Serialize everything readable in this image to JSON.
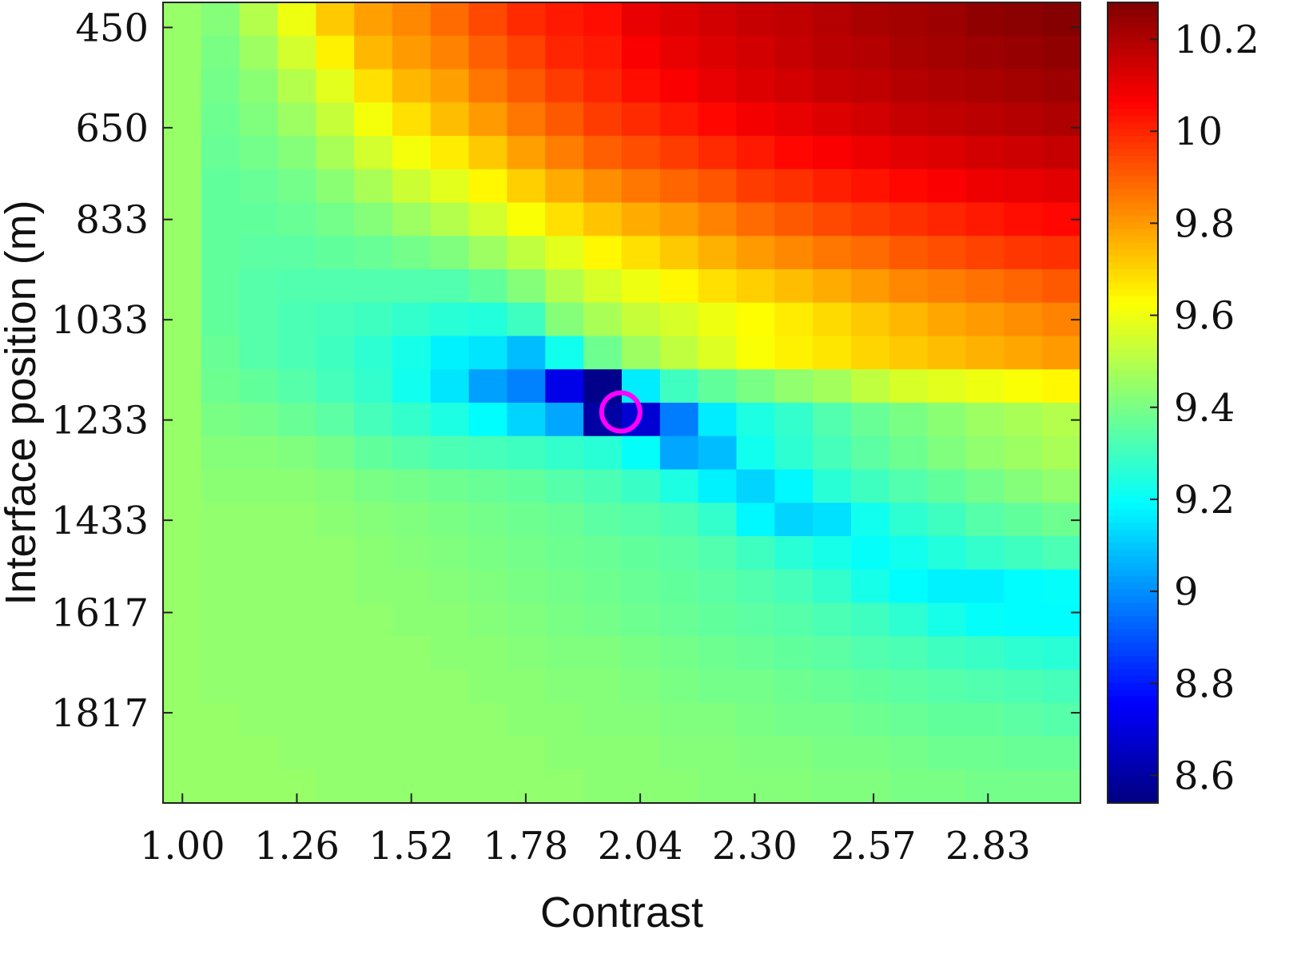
{
  "chart_data": {
    "type": "heatmap",
    "title": "",
    "xlabel": "Contrast",
    "ylabel": "Interface position (m)",
    "x_tick_labels": [
      "1.00",
      "1.26",
      "1.52",
      "1.78",
      "2.04",
      "2.30",
      "2.57",
      "2.83"
    ],
    "x_tick_values": [
      1.0,
      1.26,
      1.52,
      1.78,
      2.04,
      2.3,
      2.57,
      2.83
    ],
    "y_tick_labels": [
      "450",
      "650",
      "833",
      "1033",
      "1233",
      "1433",
      "1617",
      "1817"
    ],
    "y_tick_values": [
      450,
      650,
      833,
      1033,
      1233,
      1433,
      1617,
      1817
    ],
    "x_range": [
      0.956,
      3.04
    ],
    "y_range": [
      400,
      1997
    ],
    "grid": false,
    "colormap": "jet",
    "colorbar": {
      "range": [
        8.54,
        10.28
      ],
      "tick_labels": [
        "8.6",
        "8.8",
        "9",
        "9.2",
        "9.4",
        "9.6",
        "9.8",
        "10",
        "10.2"
      ],
      "tick_values": [
        8.6,
        8.8,
        9.0,
        9.2,
        9.4,
        9.6,
        9.8,
        10.0,
        10.2
      ]
    },
    "marker": {
      "shape": "circle",
      "color": "#ff00ff",
      "x": 1.996,
      "y": 1217
    },
    "n_cols": 24,
    "n_rows": 24,
    "x": [
      1.0,
      1.087,
      1.174,
      1.261,
      1.348,
      1.435,
      1.522,
      1.609,
      1.696,
      1.783,
      1.87,
      1.957,
      2.043,
      2.13,
      2.217,
      2.304,
      2.391,
      2.478,
      2.565,
      2.652,
      2.739,
      2.826,
      2.913,
      3.0
    ],
    "y": [
      433,
      500,
      567,
      633,
      700,
      767,
      833,
      900,
      967,
      1033,
      1100,
      1167,
      1233,
      1300,
      1367,
      1433,
      1500,
      1567,
      1633,
      1700,
      1767,
      1833,
      1900,
      1967
    ],
    "z": [
      [
        9.45,
        9.42,
        9.5,
        9.6,
        9.72,
        9.79,
        9.83,
        9.88,
        9.94,
        9.99,
        10.02,
        10.04,
        10.1,
        10.12,
        10.14,
        10.16,
        10.17,
        10.19,
        10.21,
        10.22,
        10.23,
        10.25,
        10.26,
        10.27
      ],
      [
        9.45,
        9.4,
        9.46,
        9.55,
        9.65,
        9.75,
        9.8,
        9.84,
        9.9,
        9.95,
        10.0,
        10.02,
        10.07,
        10.1,
        10.12,
        10.14,
        10.16,
        10.18,
        10.19,
        10.21,
        10.22,
        10.23,
        10.24,
        10.25
      ],
      [
        9.45,
        9.39,
        9.43,
        9.5,
        9.58,
        9.68,
        9.75,
        9.79,
        9.86,
        9.91,
        9.96,
        10.0,
        10.04,
        10.07,
        10.1,
        10.12,
        10.14,
        10.16,
        10.17,
        10.19,
        10.2,
        10.21,
        10.22,
        10.23
      ],
      [
        9.45,
        9.38,
        9.41,
        9.46,
        9.53,
        9.61,
        9.68,
        9.74,
        9.8,
        9.86,
        9.91,
        9.96,
        9.99,
        10.02,
        10.05,
        10.08,
        10.1,
        10.12,
        10.14,
        10.16,
        10.17,
        10.18,
        10.19,
        10.2
      ],
      [
        9.45,
        9.37,
        9.39,
        9.42,
        9.48,
        9.55,
        9.61,
        9.66,
        9.72,
        9.79,
        9.85,
        9.9,
        9.93,
        9.96,
        9.99,
        10.02,
        10.05,
        10.07,
        10.09,
        10.11,
        10.12,
        10.14,
        10.15,
        10.16
      ],
      [
        9.45,
        9.36,
        9.37,
        9.39,
        9.43,
        9.48,
        9.54,
        9.58,
        9.64,
        9.71,
        9.77,
        9.82,
        9.86,
        9.89,
        9.92,
        9.96,
        9.98,
        10.01,
        10.03,
        10.05,
        10.07,
        10.09,
        10.1,
        10.11
      ],
      [
        9.45,
        9.36,
        9.36,
        9.37,
        9.39,
        9.42,
        9.46,
        9.5,
        9.55,
        9.62,
        9.68,
        9.73,
        9.77,
        9.8,
        9.84,
        9.88,
        9.91,
        9.94,
        9.96,
        9.98,
        10.0,
        10.02,
        10.04,
        10.05
      ],
      [
        9.45,
        9.36,
        9.35,
        9.35,
        9.36,
        9.37,
        9.39,
        9.41,
        9.46,
        9.52,
        9.58,
        9.64,
        9.68,
        9.72,
        9.76,
        9.8,
        9.83,
        9.86,
        9.88,
        9.91,
        9.93,
        9.95,
        9.97,
        9.98
      ],
      [
        9.45,
        9.36,
        9.34,
        9.33,
        9.33,
        9.33,
        9.33,
        9.33,
        9.36,
        9.42,
        9.5,
        9.56,
        9.6,
        9.64,
        9.68,
        9.71,
        9.74,
        9.77,
        9.8,
        9.83,
        9.85,
        9.87,
        9.89,
        9.91
      ],
      [
        9.45,
        9.36,
        9.34,
        9.32,
        9.31,
        9.3,
        9.28,
        9.26,
        9.25,
        9.3,
        9.42,
        9.48,
        9.53,
        9.56,
        9.6,
        9.63,
        9.66,
        9.69,
        9.72,
        9.75,
        9.78,
        9.8,
        9.82,
        9.84
      ],
      [
        9.45,
        9.37,
        9.34,
        9.32,
        9.3,
        9.27,
        9.23,
        9.17,
        9.15,
        9.08,
        9.22,
        9.38,
        9.46,
        9.52,
        9.57,
        9.62,
        9.65,
        9.67,
        9.7,
        9.72,
        9.74,
        9.76,
        9.78,
        9.8
      ],
      [
        9.45,
        9.38,
        9.36,
        9.34,
        9.31,
        9.28,
        9.22,
        9.15,
        9.03,
        8.98,
        8.72,
        8.56,
        9.16,
        9.3,
        9.36,
        9.4,
        9.44,
        9.47,
        9.52,
        9.56,
        9.58,
        9.6,
        9.62,
        9.64
      ],
      [
        9.45,
        9.4,
        9.39,
        9.37,
        9.35,
        9.31,
        9.28,
        9.24,
        9.19,
        9.12,
        9.04,
        8.6,
        8.68,
        8.97,
        9.16,
        9.24,
        9.28,
        9.33,
        9.37,
        9.4,
        9.43,
        9.46,
        9.48,
        9.5
      ],
      [
        9.45,
        9.42,
        9.42,
        9.41,
        9.39,
        9.36,
        9.34,
        9.32,
        9.31,
        9.3,
        9.28,
        9.26,
        9.2,
        9.04,
        9.08,
        9.22,
        9.27,
        9.31,
        9.35,
        9.38,
        9.41,
        9.44,
        9.46,
        9.48
      ],
      [
        9.45,
        9.43,
        9.43,
        9.43,
        9.42,
        9.4,
        9.39,
        9.38,
        9.37,
        9.36,
        9.34,
        9.32,
        9.29,
        9.24,
        9.17,
        9.12,
        9.18,
        9.26,
        9.3,
        9.33,
        9.36,
        9.39,
        9.42,
        9.44
      ],
      [
        9.45,
        9.44,
        9.44,
        9.44,
        9.43,
        9.42,
        9.41,
        9.4,
        9.39,
        9.38,
        9.37,
        9.35,
        9.34,
        9.32,
        9.28,
        9.18,
        9.12,
        9.14,
        9.22,
        9.27,
        9.3,
        9.34,
        9.36,
        9.38
      ],
      [
        9.45,
        9.44,
        9.44,
        9.44,
        9.44,
        9.43,
        9.42,
        9.41,
        9.4,
        9.39,
        9.38,
        9.37,
        9.36,
        9.35,
        9.33,
        9.3,
        9.26,
        9.23,
        9.2,
        9.22,
        9.25,
        9.28,
        9.3,
        9.32
      ],
      [
        9.45,
        9.44,
        9.44,
        9.44,
        9.44,
        9.43,
        9.43,
        9.42,
        9.41,
        9.4,
        9.39,
        9.38,
        9.37,
        9.36,
        9.35,
        9.33,
        9.31,
        9.28,
        9.23,
        9.19,
        9.17,
        9.17,
        9.19,
        9.2
      ],
      [
        9.45,
        9.44,
        9.44,
        9.44,
        9.44,
        9.44,
        9.43,
        9.43,
        9.42,
        9.41,
        9.4,
        9.39,
        9.38,
        9.37,
        9.36,
        9.35,
        9.34,
        9.32,
        9.3,
        9.27,
        9.23,
        9.2,
        9.19,
        9.19
      ],
      [
        9.45,
        9.44,
        9.44,
        9.44,
        9.44,
        9.44,
        9.44,
        9.43,
        9.43,
        9.42,
        9.41,
        9.41,
        9.4,
        9.39,
        9.38,
        9.37,
        9.36,
        9.35,
        9.33,
        9.32,
        9.3,
        9.29,
        9.27,
        9.26
      ],
      [
        9.45,
        9.44,
        9.44,
        9.44,
        9.44,
        9.44,
        9.44,
        9.44,
        9.43,
        9.43,
        9.42,
        9.42,
        9.41,
        9.4,
        9.39,
        9.39,
        9.38,
        9.37,
        9.36,
        9.35,
        9.34,
        9.33,
        9.32,
        9.31
      ],
      [
        9.45,
        9.45,
        9.44,
        9.44,
        9.44,
        9.44,
        9.44,
        9.44,
        9.44,
        9.43,
        9.43,
        9.42,
        9.42,
        9.41,
        9.41,
        9.4,
        9.39,
        9.39,
        9.38,
        9.37,
        9.36,
        9.36,
        9.35,
        9.34
      ],
      [
        9.45,
        9.45,
        9.45,
        9.44,
        9.44,
        9.44,
        9.44,
        9.44,
        9.44,
        9.44,
        9.43,
        9.43,
        9.43,
        9.42,
        9.42,
        9.41,
        9.41,
        9.4,
        9.4,
        9.39,
        9.38,
        9.38,
        9.37,
        9.37
      ],
      [
        9.45,
        9.45,
        9.45,
        9.45,
        9.44,
        9.44,
        9.44,
        9.44,
        9.44,
        9.44,
        9.44,
        9.43,
        9.43,
        9.43,
        9.42,
        9.42,
        9.42,
        9.41,
        9.41,
        9.4,
        9.4,
        9.39,
        9.39,
        9.39
      ]
    ]
  }
}
